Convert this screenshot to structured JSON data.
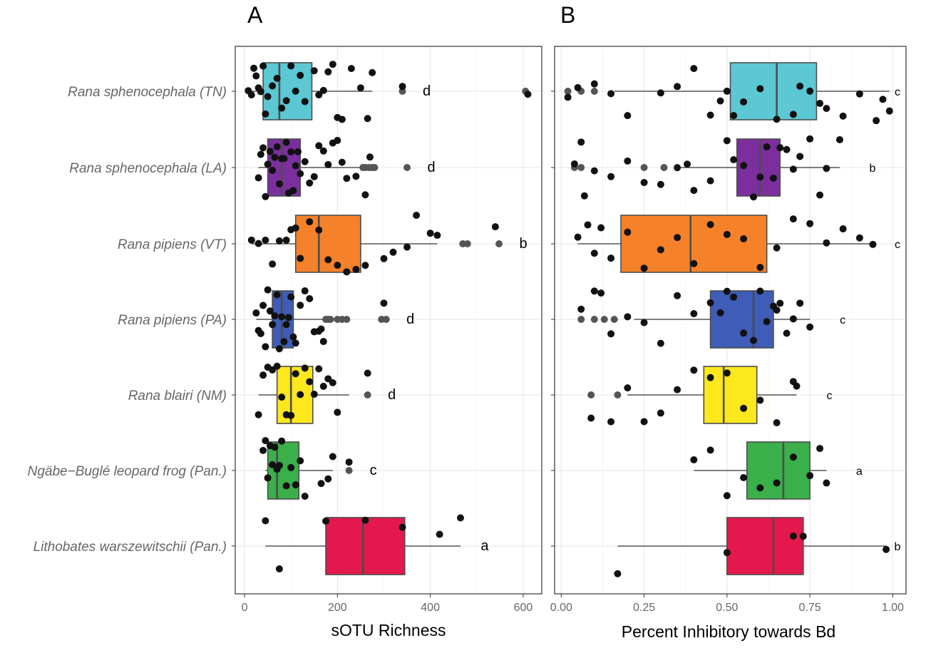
{
  "chart_data": [
    {
      "type": "box",
      "panel_label": "A",
      "xlabel": "sOTU Richness",
      "xlim": [
        -20,
        640
      ],
      "xticks": [
        0,
        200,
        400,
        600
      ],
      "grid": true,
      "categories": [
        "Rana sphenocephala (TN)",
        "Rana sphenocephala (LA)",
        "Rana pipiens (VT)",
        "Rana pipiens (PA)",
        "Rana blairi (NM)",
        "Ngäbe−Buglé leopard frog (Pan.)",
        "Lithobates warszewitschii (Pan.)"
      ],
      "colors": [
        "#5bc8d4",
        "#7b2f9e",
        "#f5822a",
        "#3e5cb8",
        "#fde81d",
        "#3aaf4a",
        "#e5184d"
      ],
      "boxes": [
        {
          "q1": 40,
          "median": 75,
          "q3": 145,
          "wlo": 8,
          "whi": 275,
          "outliers": [
            340,
            605
          ],
          "letter": "d"
        },
        {
          "q1": 50,
          "median": 80,
          "q3": 120,
          "wlo": 30,
          "whi": 250,
          "outliers": [
            255,
            260,
            268,
            275,
            280,
            350
          ],
          "letter": "d"
        },
        {
          "q1": 110,
          "median": 160,
          "q3": 250,
          "wlo": 15,
          "whi": 415,
          "outliers": [
            470,
            480,
            548
          ],
          "letter": "b"
        },
        {
          "q1": 60,
          "median": 80,
          "q3": 105,
          "wlo": 25,
          "whi": 170,
          "outliers": [
            175,
            180,
            185,
            200,
            210,
            220,
            295,
            305
          ],
          "letter": "d"
        },
        {
          "q1": 70,
          "median": 100,
          "q3": 147,
          "wlo": 30,
          "whi": 225,
          "outliers": [
            265
          ],
          "letter": "d"
        },
        {
          "q1": 50,
          "median": 70,
          "q3": 117,
          "wlo": 45,
          "whi": 190,
          "outliers": [
            225
          ],
          "letter": "c"
        },
        {
          "q1": 175,
          "median": 255,
          "q3": 345,
          "wlo": 45,
          "whi": 465,
          "outliers": [],
          "letter": "a"
        }
      ],
      "points": [
        [
          8,
          15,
          20,
          25,
          30,
          35,
          40,
          45,
          50,
          60,
          70,
          80,
          90,
          100,
          110,
          120,
          130,
          150,
          160,
          170,
          180,
          190,
          200,
          210,
          230,
          250,
          265,
          275,
          340,
          610
        ],
        [
          30,
          35,
          40,
          45,
          50,
          55,
          60,
          65,
          70,
          75,
          80,
          85,
          90,
          95,
          100,
          105,
          110,
          115,
          120,
          130,
          140,
          150,
          160,
          170,
          180,
          190,
          200,
          210,
          220,
          240,
          260,
          270
        ],
        [
          15,
          30,
          45,
          60,
          75,
          90,
          100,
          110,
          120,
          140,
          160,
          180,
          200,
          220,
          240,
          260,
          300,
          320,
          350,
          370,
          400,
          415,
          540
        ],
        [
          25,
          30,
          35,
          40,
          45,
          50,
          55,
          60,
          65,
          70,
          75,
          80,
          85,
          90,
          95,
          100,
          105,
          110,
          120,
          130,
          140,
          150,
          160,
          165,
          170,
          300
        ],
        [
          30,
          40,
          50,
          60,
          70,
          80,
          90,
          100,
          110,
          120,
          130,
          140,
          150,
          160,
          170,
          180,
          190,
          200,
          265
        ],
        [
          40,
          45,
          50,
          55,
          60,
          65,
          70,
          75,
          80,
          90,
          100,
          110,
          120,
          130,
          165,
          180,
          190,
          225
        ],
        [
          45,
          75,
          175,
          260,
          340,
          420,
          465
        ]
      ]
    },
    {
      "type": "box",
      "panel_label": "B",
      "xlabel": "Percent Inhibitory towards Bd",
      "xlim": [
        -0.02,
        1.04
      ],
      "xticks": [
        0.0,
        0.25,
        0.5,
        0.75,
        1.0
      ],
      "xticklabels": [
        "0.00",
        "0.25",
        "0.50",
        "0.75",
        "1.00"
      ],
      "grid": true,
      "colors": [
        "#5bc8d4",
        "#7b2f9e",
        "#f5822a",
        "#3e5cb8",
        "#fde81d",
        "#3aaf4a",
        "#e5184d"
      ],
      "boxes": [
        {
          "q1": 0.51,
          "median": 0.65,
          "q3": 0.77,
          "wlo": 0.16,
          "whi": 0.99,
          "outliers": [
            0.02,
            0.06,
            0.1
          ],
          "letter": "c"
        },
        {
          "q1": 0.53,
          "median": 0.6,
          "q3": 0.66,
          "wlo": 0.35,
          "whi": 0.84,
          "outliers": [
            0.04,
            0.06,
            0.25,
            0.31
          ],
          "letter": "b"
        },
        {
          "q1": 0.18,
          "median": 0.39,
          "q3": 0.62,
          "wlo": 0.05,
          "whi": 0.94,
          "outliers": [],
          "letter": "c"
        },
        {
          "q1": 0.45,
          "median": 0.58,
          "q3": 0.64,
          "wlo": 0.22,
          "whi": 0.75,
          "outliers": [
            0.06,
            0.1,
            0.13,
            0.16
          ],
          "letter": "c"
        },
        {
          "q1": 0.43,
          "median": 0.49,
          "q3": 0.59,
          "wlo": 0.2,
          "whi": 0.71,
          "outliers": [
            0.09,
            0.17
          ],
          "letter": "c"
        },
        {
          "q1": 0.56,
          "median": 0.67,
          "q3": 0.75,
          "wlo": 0.4,
          "whi": 0.8,
          "outliers": [],
          "letter": "a"
        },
        {
          "q1": 0.5,
          "median": 0.64,
          "q3": 0.73,
          "wlo": 0.17,
          "whi": 0.98,
          "outliers": [],
          "letter": "b"
        }
      ],
      "points": [
        [
          0.02,
          0.05,
          0.1,
          0.15,
          0.2,
          0.3,
          0.35,
          0.4,
          0.45,
          0.48,
          0.5,
          0.52,
          0.55,
          0.6,
          0.65,
          0.7,
          0.72,
          0.75,
          0.78,
          0.8,
          0.85,
          0.9,
          0.95,
          0.97,
          0.99
        ],
        [
          0.04,
          0.06,
          0.07,
          0.1,
          0.15,
          0.2,
          0.25,
          0.3,
          0.35,
          0.38,
          0.4,
          0.45,
          0.5,
          0.52,
          0.55,
          0.58,
          0.6,
          0.62,
          0.64,
          0.66,
          0.68,
          0.7,
          0.72,
          0.75,
          0.78,
          0.8,
          0.84
        ],
        [
          0.05,
          0.08,
          0.1,
          0.12,
          0.15,
          0.2,
          0.25,
          0.3,
          0.35,
          0.4,
          0.45,
          0.5,
          0.55,
          0.6,
          0.65,
          0.7,
          0.75,
          0.8,
          0.85,
          0.9,
          0.94
        ],
        [
          0.06,
          0.1,
          0.12,
          0.15,
          0.2,
          0.25,
          0.3,
          0.35,
          0.4,
          0.45,
          0.48,
          0.5,
          0.52,
          0.55,
          0.58,
          0.6,
          0.62,
          0.64,
          0.65,
          0.66,
          0.68,
          0.7,
          0.72,
          0.75
        ],
        [
          0.09,
          0.15,
          0.2,
          0.25,
          0.3,
          0.35,
          0.4,
          0.45,
          0.5,
          0.55,
          0.6,
          0.65,
          0.7,
          0.71
        ],
        [
          0.4,
          0.45,
          0.5,
          0.55,
          0.6,
          0.65,
          0.7,
          0.75,
          0.78,
          0.8
        ],
        [
          0.17,
          0.5,
          0.7,
          0.73,
          0.98
        ]
      ]
    }
  ]
}
